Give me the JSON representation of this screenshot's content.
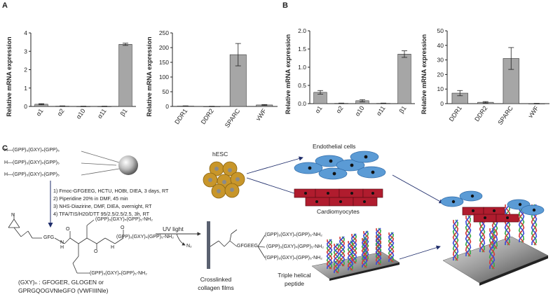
{
  "panels": {
    "a": "A",
    "b": "B",
    "c": "C"
  },
  "chart_data": [
    {
      "id": "A-left",
      "type": "bar",
      "title": "",
      "xlabel": "",
      "ylabel": "Relative mRNA expression",
      "categories": [
        "α1",
        "α2",
        "α10",
        "α11",
        "β1"
      ],
      "values": [
        0.12,
        0.02,
        0.01,
        0.01,
        3.38
      ],
      "errors": [
        0.03,
        0.01,
        0.005,
        0.005,
        0.06
      ],
      "ylim": [
        0,
        4
      ],
      "yticks": [
        0,
        1,
        2,
        3,
        4
      ],
      "ytick_labels": [
        "0",
        "1",
        "2",
        "3",
        "4"
      ],
      "bar_color": "#a6a6a6",
      "grid": false
    },
    {
      "id": "A-right",
      "type": "bar",
      "title": "",
      "xlabel": "",
      "ylabel": "Relative mRNA expression",
      "categories": [
        "DDR1",
        "DDR2",
        "SPARC",
        "vWF"
      ],
      "values": [
        1.5,
        0.5,
        176,
        5
      ],
      "errors": [
        0.5,
        0.2,
        38,
        1.5
      ],
      "ylim": [
        0,
        250
      ],
      "yticks": [
        0,
        50,
        100,
        150,
        200,
        250
      ],
      "ytick_labels": [
        "0",
        "50",
        "100",
        "150",
        "200",
        "250"
      ],
      "bar_color": "#a6a6a6",
      "grid": false
    },
    {
      "id": "B-left",
      "type": "bar",
      "title": "",
      "xlabel": "",
      "ylabel": "Relative mRNA expression",
      "categories": [
        "α1",
        "α2",
        "α10",
        "α11",
        "β1"
      ],
      "values": [
        0.31,
        0.01,
        0.08,
        0.01,
        1.36
      ],
      "errors": [
        0.05,
        0.005,
        0.03,
        0.005,
        0.09
      ],
      "ylim": [
        0,
        2.0
      ],
      "yticks": [
        0,
        0.5,
        1.0,
        1.5,
        2.0
      ],
      "ytick_labels": [
        "0.0",
        "0.5",
        "1.0",
        "1.5",
        "2.0"
      ],
      "bar_color": "#a6a6a6",
      "grid": false
    },
    {
      "id": "B-right",
      "type": "bar",
      "title": "",
      "xlabel": "",
      "ylabel": "Relative mRNA expression",
      "categories": [
        "DDR1",
        "DDR2",
        "SPARC",
        "vWF"
      ],
      "values": [
        7.2,
        0.9,
        31,
        0.1
      ],
      "errors": [
        1.8,
        0.5,
        7.5,
        0.1
      ],
      "ylim": [
        0,
        50
      ],
      "yticks": [
        0,
        10,
        20,
        30,
        40,
        50
      ],
      "ytick_labels": [
        "0",
        "10",
        "20",
        "30",
        "40",
        "50"
      ],
      "bar_color": "#a6a6a6",
      "grid": false
    }
  ],
  "scheme": {
    "peptide_lines": [
      "H—(GPP)₅(GXY)ₙ(GPP)₅",
      "H—(GPP)₅(GXY)ₙ(GPP)₅",
      "H—(GPP)₅(GXY)ₙ(GPP)₅"
    ],
    "steps": [
      "1) Fmoc-GFGEEG, HCTU, HOBt, DIEA, 3 days, RT",
      "2) Piperidine 20% in DMF, 45 min",
      "3) NHS-Diazirine, DMF, DIEA, overnight, RT",
      "4) TFA/TIS/H20/DTT 95/2.5/2.5/2.5, 3h, RT"
    ],
    "gfg": "GFG",
    "branch1": "(GPP)₅(GXY)ₙ(GPP)₅-NH₂",
    "branch2": "(GPP)₅(GXY)ₙ(GPP)₅-NH₂",
    "branch3": "(GPP)₅(GXY)ₙ(GPP)₅-NH₂",
    "atom_h1": "H",
    "atom_n1": "N",
    "atom_h2": "H",
    "atom_n2": "N",
    "atom_o1": "O",
    "atom_o2": "O",
    "atom_o3": "O",
    "gxy_line1": "(GXY)ₙ : GFOGER, GLOGEN or",
    "gxy_line2": "GPRGQOGVNleGFO (VWFIIINle)",
    "uv": "UV light",
    "n2": "N₂",
    "films_line1": "Crosslinked",
    "films_line2": "collagen films",
    "gfgeeg": "GFGEEG",
    "tri1": "(GPP)₅(GXY)ₙ(GPP)₅-NH₂",
    "tri2": "(GPP)₅(GXY)ₙ(GPP)₅-NH₂",
    "tri3": "(GPP)₅(GXY)ₙ(GPP)₅-NH₂",
    "triple_line1": "Triple helical",
    "triple_line2": "peptide",
    "hesc": "hESC",
    "endothelial": "Endothelial cells",
    "cardiomyocytes": "Cardiomyocytes"
  },
  "colors": {
    "bar": "#a6a6a6",
    "arrow": "#1f2d6b",
    "hesc_cell": "#c8962a",
    "endothelial": "#5b9bd5",
    "cardio": "#b01c2e",
    "helix_green": "#3aa845",
    "helix_red": "#d43a3a",
    "helix_blue": "#3a4ad4"
  }
}
